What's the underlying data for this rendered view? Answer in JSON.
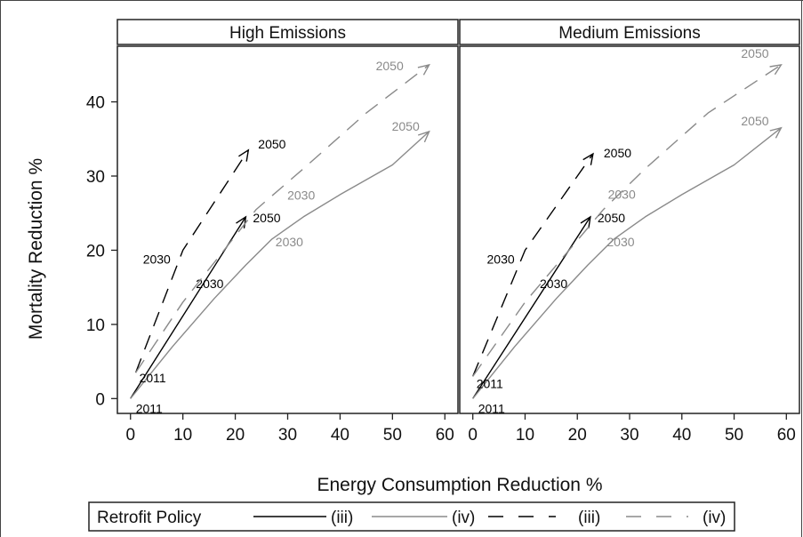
{
  "chart_data": {
    "type": "line",
    "xlabel": "Energy Consumption Reduction %",
    "ylabel": "Mortality Reduction %",
    "xlim": [
      -2.5,
      62.5
    ],
    "ylim": [
      -2,
      47.5
    ],
    "xticks": [
      0,
      10,
      20,
      30,
      40,
      50,
      60
    ],
    "yticks": [
      0,
      10,
      20,
      30,
      40
    ],
    "grid": false,
    "legend_position": "bottom",
    "legend_title": "Retrofit Policy",
    "legend_entries": [
      {
        "label": "(iii)",
        "color": "#000000",
        "dashed": false
      },
      {
        "label": "(iv)",
        "color": "#8a8a8a",
        "dashed": false
      },
      {
        "label": "(iii)",
        "color": "#000000",
        "dashed": true
      },
      {
        "label": "(iv)",
        "color": "#8a8a8a",
        "dashed": true
      }
    ],
    "colors": {
      "dark": "#000000",
      "grey": "#8a8a8a"
    },
    "panels": [
      {
        "title": "High Emissions",
        "series": [
          {
            "color": "dark",
            "dashed": false,
            "points": [
              [
                0,
                0
              ],
              [
                22,
                24.5
              ]
            ],
            "labels": [
              {
                "text": "2011",
                "x": 0,
                "y": 0,
                "dx": 6,
                "dy": 16
              },
              {
                "text": "2030",
                "x": 13,
                "y": 15.5,
                "dx": -3,
                "dy": 5
              },
              {
                "text": "2050",
                "x": 22,
                "y": 24.5,
                "dx": 8,
                "dy": 6
              }
            ]
          },
          {
            "color": "grey",
            "dashed": false,
            "points": [
              [
                0,
                0
              ],
              [
                8,
                7
              ],
              [
                16,
                13.5
              ],
              [
                22,
                18
              ],
              [
                27,
                21.5
              ],
              [
                33,
                24.5
              ],
              [
                40,
                27.5
              ],
              [
                50,
                31.5
              ],
              [
                57,
                36
              ]
            ],
            "labels": [
              {
                "text": "2030",
                "x": 27,
                "y": 21.5,
                "dx": 4,
                "dy": 8
              },
              {
                "text": "2050",
                "x": 57,
                "y": 36,
                "dx": -42,
                "dy": -1
              }
            ]
          },
          {
            "color": "dark",
            "dashed": true,
            "points": [
              [
                1,
                3.5
              ],
              [
                10,
                20
              ],
              [
                22.5,
                33.5
              ]
            ],
            "labels": [
              {
                "text": "2011",
                "x": 1,
                "y": 3.5,
                "dx": 4,
                "dy": 11
              },
              {
                "text": "2030",
                "x": 10,
                "y": 20,
                "dx": -45,
                "dy": 15
              },
              {
                "text": "2050",
                "x": 22.5,
                "y": 33.5,
                "dx": 11,
                "dy": -2
              }
            ]
          },
          {
            "color": "grey",
            "dashed": true,
            "points": [
              [
                1,
                3.5
              ],
              [
                10,
                13
              ],
              [
                24,
                25.5
              ],
              [
                33,
                31
              ],
              [
                45,
                38.5
              ],
              [
                57,
                45
              ]
            ],
            "labels": [
              {
                "text": "2030",
                "x": 24,
                "y": 25.5,
                "dx": 35,
                "dy": -11
              },
              {
                "text": "2050",
                "x": 57,
                "y": 45,
                "dx": -60,
                "dy": 6
              }
            ]
          }
        ]
      },
      {
        "title": "Medium Emissions",
        "series": [
          {
            "color": "dark",
            "dashed": false,
            "points": [
              [
                0,
                0
              ],
              [
                22.5,
                24.5
              ]
            ],
            "labels": [
              {
                "text": "2011",
                "x": 0,
                "y": 0,
                "dx": 6,
                "dy": 16
              },
              {
                "text": "2030",
                "x": 13.5,
                "y": 15.5,
                "dx": -4,
                "dy": 5
              },
              {
                "text": "2050",
                "x": 22.5,
                "y": 24.5,
                "dx": 8,
                "dy": 6
              }
            ]
          },
          {
            "color": "grey",
            "dashed": false,
            "points": [
              [
                0,
                0
              ],
              [
                8,
                7
              ],
              [
                16,
                13.5
              ],
              [
                22,
                18
              ],
              [
                27,
                21.5
              ],
              [
                33,
                24.5
              ],
              [
                40,
                27.5
              ],
              [
                50,
                31.5
              ],
              [
                59,
                36.5
              ]
            ],
            "labels": [
              {
                "text": "2030",
                "x": 27,
                "y": 21.5,
                "dx": -8,
                "dy": 8
              },
              {
                "text": "2050",
                "x": 59,
                "y": 36.5,
                "dx": -45,
                "dy": -3
              }
            ]
          },
          {
            "color": "dark",
            "dashed": true,
            "points": [
              [
                0,
                3
              ],
              [
                10,
                20
              ],
              [
                23,
                33
              ]
            ],
            "labels": [
              {
                "text": "2011",
                "x": 0,
                "y": 3,
                "dx": 4,
                "dy": 13
              },
              {
                "text": "2030",
                "x": 10,
                "y": 20,
                "dx": -43,
                "dy": 15
              },
              {
                "text": "2050",
                "x": 23,
                "y": 33,
                "dx": 12,
                "dy": 4
              }
            ]
          },
          {
            "color": "grey",
            "dashed": true,
            "points": [
              [
                0,
                3
              ],
              [
                10,
                13
              ],
              [
                25,
                25.5
              ],
              [
                33,
                31
              ],
              [
                45,
                38.5
              ],
              [
                59,
                45
              ]
            ],
            "labels": [
              {
                "text": "2030",
                "x": 25,
                "y": 25.5,
                "dx": 5,
                "dy": -12
              },
              {
                "text": "2050",
                "x": 59,
                "y": 45,
                "dx": -45,
                "dy": -8
              }
            ]
          }
        ]
      }
    ]
  }
}
